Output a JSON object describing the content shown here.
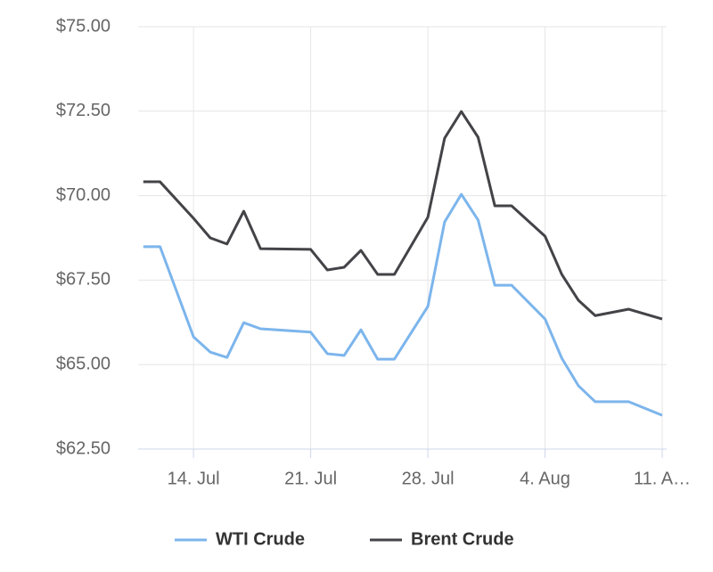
{
  "chart_data": {
    "type": "line",
    "x": [
      "07-11",
      "07-12",
      "07-14",
      "07-15",
      "07-16",
      "07-17",
      "07-18",
      "07-21",
      "07-22",
      "07-23",
      "07-24",
      "07-25",
      "07-26",
      "07-28",
      "07-29",
      "07-30",
      "07-31",
      "08-01",
      "08-02",
      "08-04",
      "08-05",
      "08-06",
      "08-07",
      "08-09",
      "08-11"
    ],
    "series": [
      {
        "name": "WTI Crude",
        "color": "#7cb5ec",
        "values": [
          68.49,
          68.49,
          65.82,
          65.37,
          65.21,
          66.24,
          66.06,
          65.96,
          65.32,
          65.27,
          66.03,
          65.16,
          65.16,
          66.72,
          69.22,
          70.04,
          69.28,
          67.35,
          67.35,
          66.35,
          65.19,
          64.37,
          63.9,
          63.9,
          63.5
        ]
      },
      {
        "name": "Brent Crude",
        "color": "#434348",
        "values": [
          70.41,
          70.41,
          69.33,
          68.75,
          68.57,
          69.54,
          68.43,
          68.41,
          67.8,
          67.88,
          68.38,
          67.67,
          67.67,
          69.36,
          71.7,
          72.49,
          71.73,
          69.7,
          69.7,
          68.8,
          67.67,
          66.9,
          66.45,
          66.64,
          66.35
        ]
      }
    ],
    "xlim": [
      "07-10",
      "08-11"
    ],
    "xticks": [
      {
        "value": "07-14",
        "label": "14. Jul"
      },
      {
        "value": "07-21",
        "label": "21. Jul"
      },
      {
        "value": "07-28",
        "label": "28. Jul"
      },
      {
        "value": "08-04",
        "label": "4. Aug"
      },
      {
        "value": "08-11",
        "label": "11. A…"
      }
    ],
    "ylim": [
      62.5,
      75
    ],
    "yticks": [
      {
        "value": 62.5,
        "label": "$62.50"
      },
      {
        "value": 65,
        "label": "$65.00"
      },
      {
        "value": 67.5,
        "label": "$67.50"
      },
      {
        "value": 70,
        "label": "$70.00"
      },
      {
        "value": 72.5,
        "label": "$72.50"
      },
      {
        "value": 75,
        "label": "$75.00"
      }
    ],
    "grid": true,
    "legend": "bottom"
  }
}
